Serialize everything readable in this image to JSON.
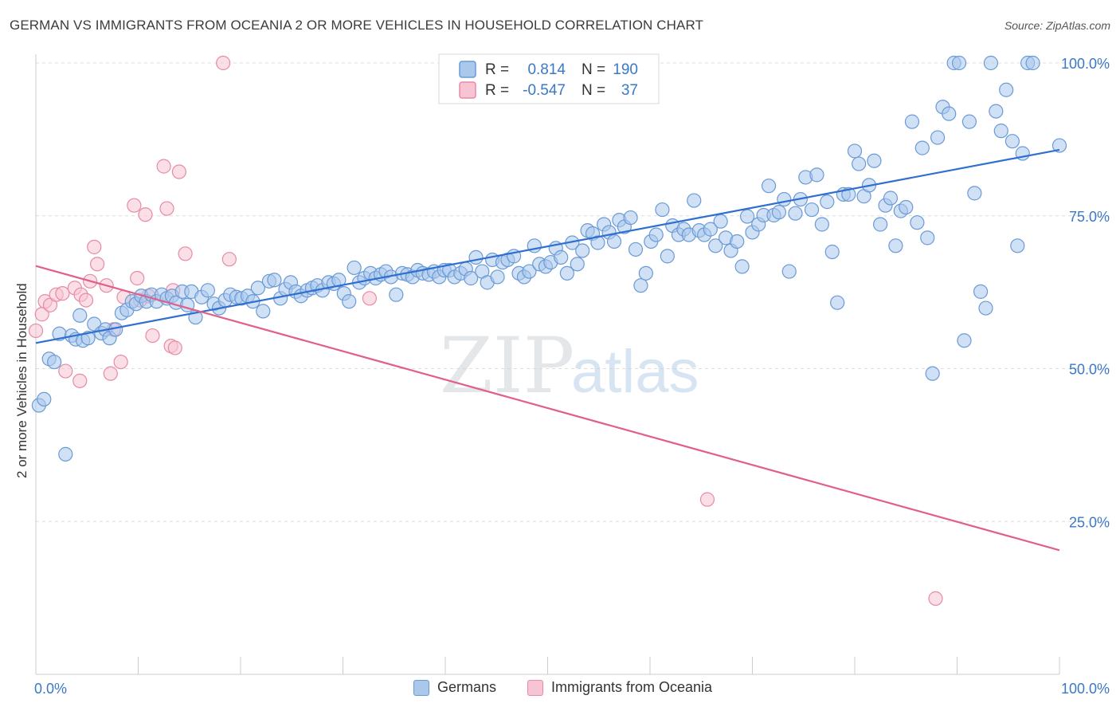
{
  "header": {
    "title": "GERMAN VS IMMIGRANTS FROM OCEANIA 2 OR MORE VEHICLES IN HOUSEHOLD CORRELATION CHART",
    "source": "Source: ZipAtlas.com"
  },
  "watermark": {
    "zip": "ZIP",
    "atlas": "atlas"
  },
  "legend_top": {
    "rows": [
      {
        "r_label": "R =",
        "r_value": "0.814",
        "n_label": "N =",
        "n_value": "190"
      },
      {
        "r_label": "R =",
        "r_value": "-0.547",
        "n_label": "N =",
        "n_value": "37"
      }
    ]
  },
  "legend_bottom": {
    "germans": "Germans",
    "oceania": "Immigrants from Oceania"
  },
  "colors": {
    "blue_fill": "#aac8ec",
    "blue_stroke": "#6a9ad6",
    "blue_line": "#2f6fd0",
    "pink_fill": "#f6c4d2",
    "pink_stroke": "#e88aa6",
    "pink_line": "#e0608a",
    "value_text": "#3a78c8",
    "grid": "#dcdcdc"
  },
  "chart_data": {
    "type": "scatter",
    "title": "GERMAN VS IMMIGRANTS FROM OCEANIA 2 OR MORE VEHICLES IN HOUSEHOLD CORRELATION CHART",
    "xlabel": "",
    "ylabel": "2 or more Vehicles in Household",
    "x_tick_labels": [
      "0.0%",
      "100.0%"
    ],
    "y_tick_labels": [
      "25.0%",
      "50.0%",
      "75.0%",
      "100.0%"
    ],
    "y_ticks": [
      25,
      50,
      75,
      100
    ],
    "xlim": [
      0,
      100
    ],
    "ylim": [
      0,
      100
    ],
    "grid": true,
    "legend_position": "top-center",
    "series": [
      {
        "name": "Germans",
        "r": 0.814,
        "n": 190,
        "trend": {
          "x": [
            0,
            100
          ],
          "y": [
            54.2,
            85.8
          ]
        },
        "points": [
          [
            0.3,
            44.0
          ],
          [
            0.8,
            45.0
          ],
          [
            1.3,
            51.6
          ],
          [
            1.8,
            51.1
          ],
          [
            2.3,
            55.7
          ],
          [
            2.9,
            36.0
          ],
          [
            3.5,
            55.4
          ],
          [
            3.9,
            54.8
          ],
          [
            4.3,
            58.7
          ],
          [
            4.6,
            54.6
          ],
          [
            5.1,
            55.0
          ],
          [
            5.7,
            57.3
          ],
          [
            6.4,
            55.8
          ],
          [
            6.8,
            56.4
          ],
          [
            7.2,
            55.0
          ],
          [
            7.8,
            56.4
          ],
          [
            8.4,
            59.1
          ],
          [
            8.9,
            59.6
          ],
          [
            9.4,
            61.0
          ],
          [
            9.8,
            60.6
          ],
          [
            10.3,
            61.9
          ],
          [
            10.8,
            61.0
          ],
          [
            11.3,
            62.1
          ],
          [
            11.8,
            61.0
          ],
          [
            12.3,
            62.1
          ],
          [
            12.8,
            61.5
          ],
          [
            13.3,
            61.9
          ],
          [
            13.7,
            60.8
          ],
          [
            14.3,
            62.6
          ],
          [
            14.8,
            60.4
          ],
          [
            15.2,
            62.6
          ],
          [
            15.6,
            58.4
          ],
          [
            16.2,
            61.7
          ],
          [
            16.8,
            62.8
          ],
          [
            17.4,
            60.6
          ],
          [
            17.9,
            59.9
          ],
          [
            18.5,
            61.2
          ],
          [
            19.0,
            62.1
          ],
          [
            19.6,
            61.7
          ],
          [
            20.1,
            61.5
          ],
          [
            20.7,
            61.9
          ],
          [
            21.2,
            61.0
          ],
          [
            21.7,
            63.2
          ],
          [
            22.2,
            59.4
          ],
          [
            22.8,
            64.3
          ],
          [
            23.3,
            64.5
          ],
          [
            23.9,
            61.5
          ],
          [
            24.4,
            63.0
          ],
          [
            24.9,
            64.1
          ],
          [
            25.4,
            62.6
          ],
          [
            25.9,
            61.9
          ],
          [
            26.5,
            62.8
          ],
          [
            27.0,
            63.2
          ],
          [
            27.5,
            63.6
          ],
          [
            28.0,
            62.8
          ],
          [
            28.6,
            64.1
          ],
          [
            29.1,
            63.9
          ],
          [
            29.6,
            64.5
          ],
          [
            30.1,
            62.3
          ],
          [
            30.6,
            61.0
          ],
          [
            31.1,
            66.5
          ],
          [
            31.6,
            64.1
          ],
          [
            32.1,
            64.8
          ],
          [
            32.7,
            65.6
          ],
          [
            33.2,
            64.8
          ],
          [
            33.7,
            65.4
          ],
          [
            34.2,
            65.9
          ],
          [
            34.7,
            65.0
          ],
          [
            35.2,
            62.1
          ],
          [
            35.8,
            65.6
          ],
          [
            36.3,
            65.4
          ],
          [
            36.8,
            65.0
          ],
          [
            37.3,
            66.1
          ],
          [
            37.8,
            65.6
          ],
          [
            38.4,
            65.4
          ],
          [
            38.9,
            65.9
          ],
          [
            39.4,
            65.0
          ],
          [
            39.9,
            66.1
          ],
          [
            40.4,
            66.1
          ],
          [
            40.9,
            65.0
          ],
          [
            41.5,
            65.6
          ],
          [
            42.0,
            66.3
          ],
          [
            42.5,
            64.8
          ],
          [
            43.0,
            68.2
          ],
          [
            43.6,
            65.9
          ],
          [
            44.1,
            64.1
          ],
          [
            44.6,
            67.8
          ],
          [
            45.1,
            65.0
          ],
          [
            45.6,
            67.4
          ],
          [
            46.1,
            67.8
          ],
          [
            46.7,
            68.4
          ],
          [
            47.2,
            65.6
          ],
          [
            47.7,
            65.0
          ],
          [
            48.2,
            65.9
          ],
          [
            48.7,
            70.1
          ],
          [
            49.2,
            67.1
          ],
          [
            49.8,
            66.7
          ],
          [
            50.3,
            67.4
          ],
          [
            50.8,
            69.7
          ],
          [
            51.3,
            68.2
          ],
          [
            51.9,
            65.6
          ],
          [
            52.4,
            70.6
          ],
          [
            52.9,
            67.1
          ],
          [
            53.4,
            69.3
          ],
          [
            53.9,
            72.6
          ],
          [
            54.4,
            72.1
          ],
          [
            54.9,
            70.6
          ],
          [
            55.5,
            73.6
          ],
          [
            56.0,
            72.3
          ],
          [
            56.5,
            70.8
          ],
          [
            57.0,
            74.3
          ],
          [
            57.5,
            73.2
          ],
          [
            58.1,
            74.7
          ],
          [
            58.6,
            69.5
          ],
          [
            59.1,
            63.6
          ],
          [
            59.6,
            65.6
          ],
          [
            60.1,
            70.8
          ],
          [
            60.6,
            71.9
          ],
          [
            61.2,
            76.0
          ],
          [
            61.7,
            68.4
          ],
          [
            62.2,
            73.4
          ],
          [
            62.8,
            71.9
          ],
          [
            63.3,
            72.8
          ],
          [
            63.8,
            71.9
          ],
          [
            64.3,
            77.5
          ],
          [
            64.8,
            72.6
          ],
          [
            65.3,
            71.9
          ],
          [
            65.9,
            72.8
          ],
          [
            66.4,
            70.1
          ],
          [
            66.9,
            74.1
          ],
          [
            67.4,
            71.4
          ],
          [
            67.9,
            69.3
          ],
          [
            68.5,
            70.8
          ],
          [
            69.0,
            66.7
          ],
          [
            69.5,
            74.9
          ],
          [
            70.0,
            72.3
          ],
          [
            70.6,
            73.6
          ],
          [
            71.1,
            75.1
          ],
          [
            71.6,
            79.9
          ],
          [
            72.1,
            75.1
          ],
          [
            72.6,
            75.6
          ],
          [
            73.1,
            77.7
          ],
          [
            73.6,
            65.9
          ],
          [
            74.2,
            75.4
          ],
          [
            74.7,
            77.7
          ],
          [
            75.2,
            81.3
          ],
          [
            75.8,
            76.0
          ],
          [
            76.3,
            81.7
          ],
          [
            76.8,
            73.6
          ],
          [
            77.3,
            77.3
          ],
          [
            77.8,
            69.1
          ],
          [
            78.3,
            60.8
          ],
          [
            78.9,
            78.5
          ],
          [
            79.4,
            78.5
          ],
          [
            80.0,
            85.6
          ],
          [
            80.4,
            83.5
          ],
          [
            80.9,
            78.2
          ],
          [
            81.4,
            80.0
          ],
          [
            81.9,
            84.0
          ],
          [
            82.5,
            73.6
          ],
          [
            83.0,
            76.7
          ],
          [
            83.5,
            77.9
          ],
          [
            84.0,
            70.1
          ],
          [
            84.5,
            75.8
          ],
          [
            85.0,
            76.4
          ],
          [
            85.6,
            90.4
          ],
          [
            86.1,
            73.9
          ],
          [
            86.6,
            86.1
          ],
          [
            87.1,
            71.4
          ],
          [
            87.6,
            49.2
          ],
          [
            88.1,
            87.8
          ],
          [
            88.6,
            92.8
          ],
          [
            89.2,
            91.7
          ],
          [
            89.7,
            100.0
          ],
          [
            90.2,
            100.0
          ],
          [
            90.7,
            54.6
          ],
          [
            91.2,
            90.4
          ],
          [
            91.7,
            78.7
          ],
          [
            92.3,
            62.6
          ],
          [
            92.8,
            59.9
          ],
          [
            93.3,
            100.0
          ],
          [
            93.8,
            92.1
          ],
          [
            94.3,
            88.9
          ],
          [
            94.8,
            95.6
          ],
          [
            95.4,
            87.2
          ],
          [
            95.9,
            70.1
          ],
          [
            96.4,
            85.2
          ],
          [
            96.9,
            100.0
          ],
          [
            97.4,
            100.0
          ],
          [
            100.0,
            86.5
          ]
        ]
      },
      {
        "name": "Immigrants from Oceania",
        "r": -0.547,
        "n": 37,
        "trend": {
          "x": [
            0,
            100
          ],
          "y": [
            66.8,
            20.3
          ]
        },
        "points": [
          [
            0.0,
            56.2
          ],
          [
            0.6,
            58.9
          ],
          [
            0.9,
            61.0
          ],
          [
            1.4,
            60.4
          ],
          [
            2.0,
            62.1
          ],
          [
            2.6,
            62.3
          ],
          [
            2.9,
            49.6
          ],
          [
            3.8,
            63.2
          ],
          [
            4.3,
            48.0
          ],
          [
            4.4,
            62.1
          ],
          [
            4.9,
            61.2
          ],
          [
            5.3,
            64.3
          ],
          [
            5.7,
            69.9
          ],
          [
            6.0,
            67.1
          ],
          [
            6.9,
            63.6
          ],
          [
            7.3,
            49.2
          ],
          [
            7.6,
            56.4
          ],
          [
            8.3,
            51.1
          ],
          [
            8.6,
            61.7
          ],
          [
            9.6,
            76.7
          ],
          [
            9.9,
            64.8
          ],
          [
            10.2,
            61.2
          ],
          [
            10.7,
            75.2
          ],
          [
            11.0,
            61.9
          ],
          [
            11.4,
            55.4
          ],
          [
            12.5,
            83.1
          ],
          [
            12.8,
            76.2
          ],
          [
            13.2,
            53.7
          ],
          [
            13.4,
            62.8
          ],
          [
            13.6,
            53.4
          ],
          [
            14.0,
            82.2
          ],
          [
            14.6,
            68.8
          ],
          [
            18.3,
            100.0
          ],
          [
            18.9,
            67.9
          ],
          [
            32.6,
            61.5
          ],
          [
            65.6,
            28.6
          ],
          [
            87.9,
            12.4
          ]
        ]
      }
    ]
  }
}
